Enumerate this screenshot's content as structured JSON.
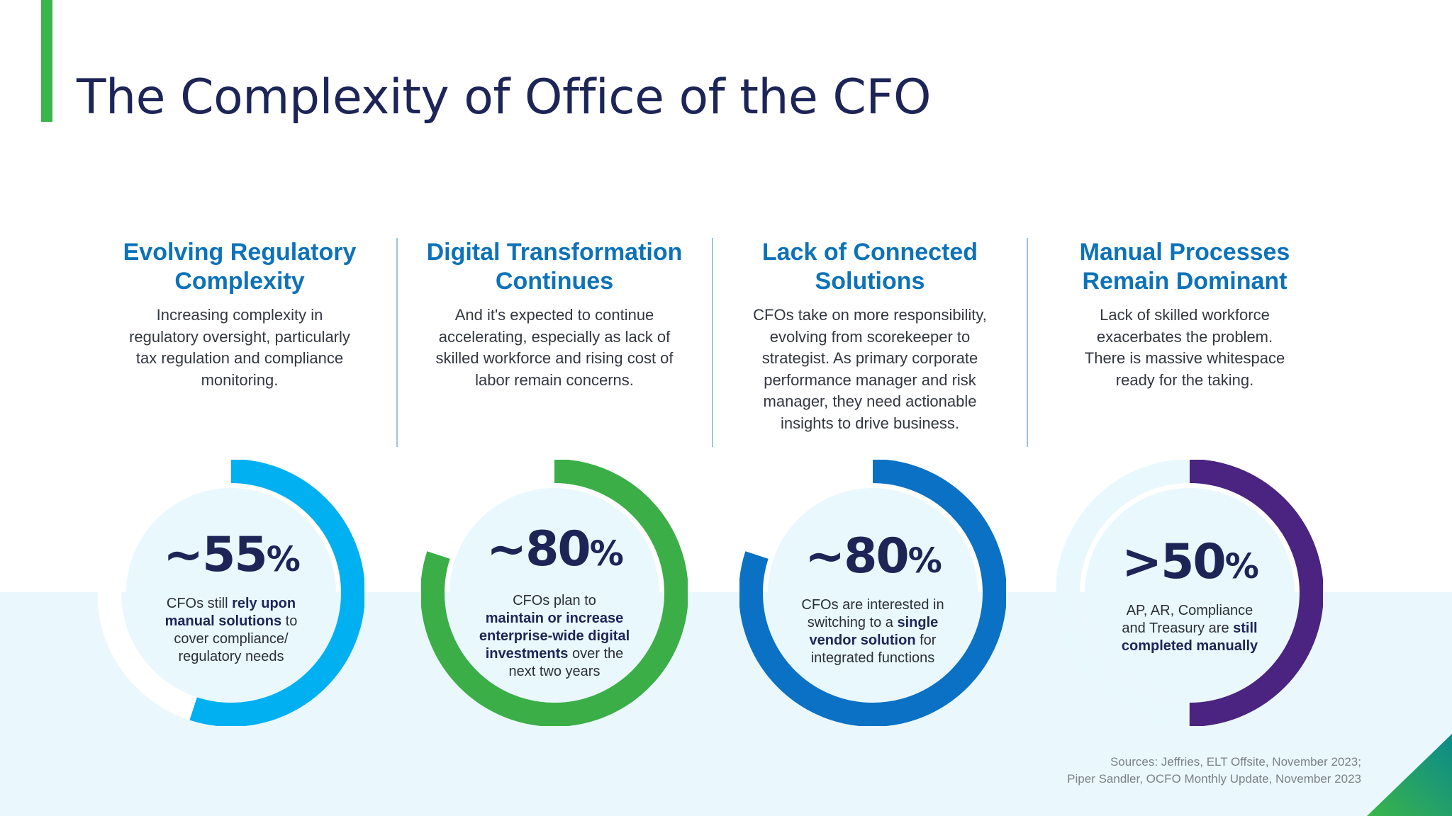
{
  "title": "The Complexity of Office of the CFO",
  "columns": [
    {
      "heading_line1": "Evolving Regulatory",
      "heading_line2": "Complexity",
      "body": [
        "Increasing complexity in",
        "regulatory oversight, particularly",
        "tax regulation and compliance",
        "monitoring."
      ]
    },
    {
      "heading_line1": "Digital Transformation",
      "heading_line2": "Continues",
      "body": [
        "And it's expected to continue",
        "accelerating, especially as lack of",
        "skilled workforce and rising cost of",
        "labor remain concerns."
      ]
    },
    {
      "heading_line1": "Lack of Connected",
      "heading_line2": "Solutions",
      "body": [
        "CFOs take on more responsibility,",
        "evolving from scorekeeper to",
        "strategist. As primary corporate",
        "performance manager and risk",
        "manager, they need actionable",
        "insights to drive business."
      ]
    },
    {
      "heading_line1": "Manual Processes",
      "heading_line2": "Remain Dominant",
      "body": [
        "Lack of skilled workforce",
        "exacerbates the problem.",
        "There is massive whitespace",
        "ready for the taking."
      ]
    }
  ],
  "stats": [
    {
      "value": "~55",
      "unit": "%",
      "percent": 55,
      "color": "#00b0f0",
      "text": [
        [
          {
            "t": "CFOs still "
          },
          {
            "t": "rely upon",
            "b": true
          }
        ],
        [
          {
            "t": "manual solutions",
            "b": true
          },
          {
            "t": " to"
          }
        ],
        [
          {
            "t": "cover compliance/"
          }
        ],
        [
          {
            "t": "regulatory needs"
          }
        ]
      ]
    },
    {
      "value": "~80",
      "unit": "%",
      "percent": 80,
      "color": "#3bae48",
      "text": [
        [
          {
            "t": "CFOs plan to"
          }
        ],
        [
          {
            "t": "maintain or increase",
            "b": true
          }
        ],
        [
          {
            "t": "enterprise-wide digital",
            "b": true
          }
        ],
        [
          {
            "t": "investments",
            "b": true
          },
          {
            "t": " over the"
          }
        ],
        [
          {
            "t": "next two years"
          }
        ]
      ]
    },
    {
      "value": "~80",
      "unit": "%",
      "percent": 80,
      "color": "#0a71c4",
      "text": [
        [
          {
            "t": "CFOs are interested in"
          }
        ],
        [
          {
            "t": "switching to a "
          },
          {
            "t": "single",
            "b": true
          }
        ],
        [
          {
            "t": "vendor solution",
            "b": true
          },
          {
            "t": " for"
          }
        ],
        [
          {
            "t": "integrated functions"
          }
        ]
      ]
    },
    {
      "value": ">50",
      "unit": "%",
      "percent": 50,
      "color": "#4a2480",
      "text": [
        [
          {
            "t": "AP, AR, Compliance"
          }
        ],
        [
          {
            "t": "and Treasury are "
          },
          {
            "t": "still",
            "b": true
          }
        ],
        [
          {
            "t": "completed manually",
            "b": true
          }
        ]
      ]
    }
  ],
  "sources": [
    "Sources: Jeffries, ELT Offsite, November 2023;",
    "Piper Sandler, OCFO Monthly Update, November 2023"
  ]
}
